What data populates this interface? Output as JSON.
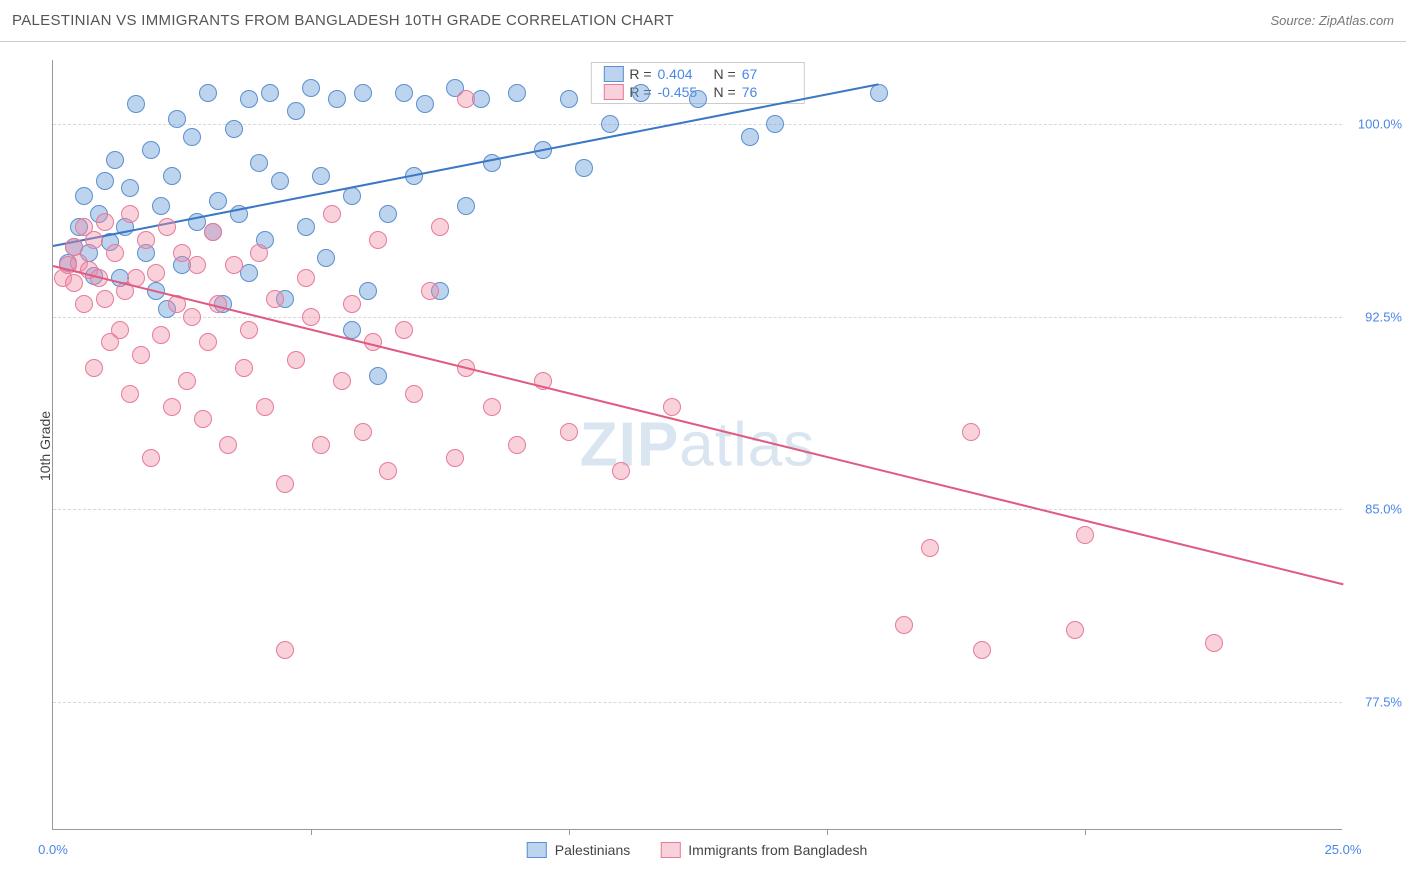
{
  "header": {
    "title": "PALESTINIAN VS IMMIGRANTS FROM BANGLADESH 10TH GRADE CORRELATION CHART",
    "source": "Source: ZipAtlas.com"
  },
  "ylabel": "10th Grade",
  "watermark_a": "ZIP",
  "watermark_b": "atlas",
  "xlim": [
    0,
    25
  ],
  "ylim": [
    72.5,
    102.5
  ],
  "yticks": [
    {
      "v": 100.0,
      "label": "100.0%"
    },
    {
      "v": 92.5,
      "label": "92.5%"
    },
    {
      "v": 85.0,
      "label": "85.0%"
    },
    {
      "v": 77.5,
      "label": "77.5%"
    }
  ],
  "xticks": [
    {
      "v": 0,
      "label": "0.0%"
    },
    {
      "v": 5,
      "label": ""
    },
    {
      "v": 10,
      "label": ""
    },
    {
      "v": 15,
      "label": ""
    },
    {
      "v": 20,
      "label": ""
    },
    {
      "v": 25,
      "label": "25.0%"
    }
  ],
  "series": [
    {
      "name": "Palestinians",
      "fill": "rgba(108,160,220,0.45)",
      "stroke": "#5b8fce",
      "line_color": "#3b77c4",
      "r_label": "R =",
      "r_value": "0.404",
      "n_label": "N =",
      "n_value": "67",
      "trend": {
        "x1": 0,
        "y1": 95.3,
        "x2": 16.0,
        "y2": 101.6
      },
      "points": [
        [
          0.3,
          94.6
        ],
        [
          0.4,
          95.2
        ],
        [
          0.5,
          96.0
        ],
        [
          0.6,
          97.2
        ],
        [
          0.7,
          95.0
        ],
        [
          0.8,
          94.1
        ],
        [
          0.9,
          96.5
        ],
        [
          1.0,
          97.8
        ],
        [
          1.1,
          95.4
        ],
        [
          1.2,
          98.6
        ],
        [
          1.3,
          94.0
        ],
        [
          1.4,
          96.0
        ],
        [
          1.5,
          97.5
        ],
        [
          1.6,
          100.8
        ],
        [
          1.8,
          95.0
        ],
        [
          1.9,
          99.0
        ],
        [
          2.0,
          93.5
        ],
        [
          2.1,
          96.8
        ],
        [
          2.2,
          92.8
        ],
        [
          2.3,
          98.0
        ],
        [
          2.4,
          100.2
        ],
        [
          2.5,
          94.5
        ],
        [
          2.7,
          99.5
        ],
        [
          2.8,
          96.2
        ],
        [
          3.0,
          101.2
        ],
        [
          3.1,
          95.8
        ],
        [
          3.2,
          97.0
        ],
        [
          3.3,
          93.0
        ],
        [
          3.5,
          99.8
        ],
        [
          3.6,
          96.5
        ],
        [
          3.8,
          101.0
        ],
        [
          3.8,
          94.2
        ],
        [
          4.0,
          98.5
        ],
        [
          4.1,
          95.5
        ],
        [
          4.2,
          101.2
        ],
        [
          4.4,
          97.8
        ],
        [
          4.5,
          93.2
        ],
        [
          4.7,
          100.5
        ],
        [
          4.9,
          96.0
        ],
        [
          5.0,
          101.4
        ],
        [
          5.2,
          98.0
        ],
        [
          5.3,
          94.8
        ],
        [
          5.5,
          101.0
        ],
        [
          5.8,
          97.2
        ],
        [
          5.8,
          92.0
        ],
        [
          6.0,
          101.2
        ],
        [
          6.1,
          93.5
        ],
        [
          6.3,
          90.2
        ],
        [
          6.5,
          96.5
        ],
        [
          6.8,
          101.2
        ],
        [
          7.0,
          98.0
        ],
        [
          7.2,
          100.8
        ],
        [
          7.5,
          93.5
        ],
        [
          7.8,
          101.4
        ],
        [
          8.0,
          96.8
        ],
        [
          8.3,
          101.0
        ],
        [
          8.5,
          98.5
        ],
        [
          9.0,
          101.2
        ],
        [
          9.5,
          99.0
        ],
        [
          10.0,
          101.0
        ],
        [
          10.3,
          98.3
        ],
        [
          10.8,
          100.0
        ],
        [
          11.4,
          101.2
        ],
        [
          12.5,
          101.0
        ],
        [
          13.5,
          99.5
        ],
        [
          14.0,
          100.0
        ],
        [
          16.0,
          101.2
        ]
      ]
    },
    {
      "name": "Immigrants from Bangladesh",
      "fill": "rgba(240,140,165,0.40)",
      "stroke": "#e77a9b",
      "line_color": "#e05a82",
      "r_label": "R =",
      "r_value": "-0.455",
      "n_label": "N =",
      "n_value": "76",
      "trend": {
        "x1": 0,
        "y1": 94.5,
        "x2": 25.0,
        "y2": 82.1
      },
      "points": [
        [
          0.2,
          94.0
        ],
        [
          0.3,
          94.5
        ],
        [
          0.4,
          93.8
        ],
        [
          0.4,
          95.2
        ],
        [
          0.5,
          94.6
        ],
        [
          0.6,
          93.0
        ],
        [
          0.6,
          96.0
        ],
        [
          0.7,
          94.3
        ],
        [
          0.8,
          95.5
        ],
        [
          0.8,
          90.5
        ],
        [
          0.9,
          94.0
        ],
        [
          1.0,
          96.2
        ],
        [
          1.0,
          93.2
        ],
        [
          1.1,
          91.5
        ],
        [
          1.2,
          95.0
        ],
        [
          1.3,
          92.0
        ],
        [
          1.4,
          93.5
        ],
        [
          1.5,
          96.5
        ],
        [
          1.5,
          89.5
        ],
        [
          1.6,
          94.0
        ],
        [
          1.7,
          91.0
        ],
        [
          1.8,
          95.5
        ],
        [
          1.9,
          87.0
        ],
        [
          2.0,
          94.2
        ],
        [
          2.1,
          91.8
        ],
        [
          2.2,
          96.0
        ],
        [
          2.3,
          89.0
        ],
        [
          2.4,
          93.0
        ],
        [
          2.5,
          95.0
        ],
        [
          2.6,
          90.0
        ],
        [
          2.7,
          92.5
        ],
        [
          2.8,
          94.5
        ],
        [
          2.9,
          88.5
        ],
        [
          3.0,
          91.5
        ],
        [
          3.1,
          95.8
        ],
        [
          3.2,
          93.0
        ],
        [
          3.4,
          87.5
        ],
        [
          3.5,
          94.5
        ],
        [
          3.7,
          90.5
        ],
        [
          3.8,
          92.0
        ],
        [
          4.0,
          95.0
        ],
        [
          4.1,
          89.0
        ],
        [
          4.3,
          93.2
        ],
        [
          4.5,
          86.0
        ],
        [
          4.7,
          90.8
        ],
        [
          4.9,
          94.0
        ],
        [
          4.5,
          79.5
        ],
        [
          5.0,
          92.5
        ],
        [
          5.2,
          87.5
        ],
        [
          5.4,
          96.5
        ],
        [
          5.6,
          90.0
        ],
        [
          5.8,
          93.0
        ],
        [
          6.0,
          88.0
        ],
        [
          6.2,
          91.5
        ],
        [
          6.3,
          95.5
        ],
        [
          6.5,
          86.5
        ],
        [
          6.8,
          92.0
        ],
        [
          7.0,
          89.5
        ],
        [
          7.3,
          93.5
        ],
        [
          7.5,
          96.0
        ],
        [
          7.8,
          87.0
        ],
        [
          8.0,
          90.5
        ],
        [
          8.0,
          101.0
        ],
        [
          8.5,
          89.0
        ],
        [
          9.0,
          87.5
        ],
        [
          9.5,
          90.0
        ],
        [
          10.0,
          88.0
        ],
        [
          11.0,
          86.5
        ],
        [
          12.0,
          89.0
        ],
        [
          16.5,
          80.5
        ],
        [
          17.0,
          83.5
        ],
        [
          17.8,
          88.0
        ],
        [
          18.0,
          79.5
        ],
        [
          19.8,
          80.3
        ],
        [
          20.0,
          84.0
        ],
        [
          22.5,
          79.8
        ]
      ]
    }
  ],
  "bottom_legend": [
    {
      "label": "Palestinians",
      "fill": "rgba(108,160,220,0.45)",
      "stroke": "#5b8fce"
    },
    {
      "label": "Immigrants from Bangladesh",
      "fill": "rgba(240,140,165,0.40)",
      "stroke": "#e77a9b"
    }
  ],
  "point_radius": 9
}
